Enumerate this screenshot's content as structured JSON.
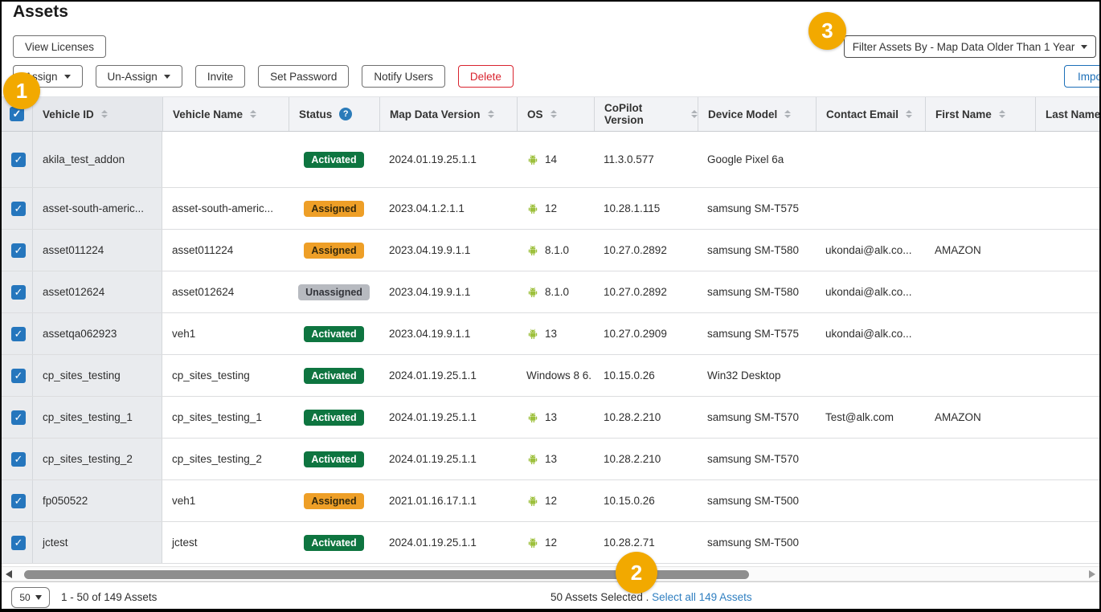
{
  "page": {
    "title": "Assets"
  },
  "toolbar": {
    "view_licenses": "View Licenses",
    "assign": "Assign",
    "unassign": "Un-Assign",
    "invite": "Invite",
    "set_password": "Set Password",
    "notify_users": "Notify Users",
    "delete": "Delete",
    "filter_label": "Filter Assets By - Map Data Older Than 1 Year",
    "import_label": "Import"
  },
  "callouts": {
    "one": "1",
    "two": "2",
    "three": "3"
  },
  "table": {
    "columns": [
      {
        "label": "Vehicle ID",
        "sort": true
      },
      {
        "label": "Vehicle Name",
        "sort": true
      },
      {
        "label": "Status",
        "help": true
      },
      {
        "label": "Map Data Version",
        "sort": true
      },
      {
        "label": "OS",
        "sort": true
      },
      {
        "label": "CoPilot Version",
        "sort": true
      },
      {
        "label": "Device Model",
        "sort": true
      },
      {
        "label": "Contact Email",
        "sort": true
      },
      {
        "label": "First Name",
        "sort": true
      },
      {
        "label": "Last Name",
        "sort": false
      }
    ],
    "rows": [
      {
        "vehicle_id": "akila_test_addon",
        "vehicle_name": "",
        "status": "Activated",
        "map_data_version": "2024.01.19.25.1.1",
        "os": "14",
        "os_android": true,
        "copilot_version": "11.3.0.577",
        "device_model": "Google Pixel 6a",
        "contact_email": "",
        "first_name": "",
        "last_name": ""
      },
      {
        "vehicle_id": "asset-south-americ...",
        "vehicle_name": "asset-south-americ...",
        "status": "Assigned",
        "map_data_version": "2023.04.1.2.1.1",
        "os": "12",
        "os_android": true,
        "copilot_version": "10.28.1.115",
        "device_model": "samsung SM-T575",
        "contact_email": "",
        "first_name": "",
        "last_name": ""
      },
      {
        "vehicle_id": "asset011224",
        "vehicle_name": "asset011224",
        "status": "Assigned",
        "map_data_version": "2023.04.19.9.1.1",
        "os": "8.1.0",
        "os_android": true,
        "copilot_version": "10.27.0.2892",
        "device_model": "samsung SM-T580",
        "contact_email": "ukondai@alk.co...",
        "first_name": "AMAZON",
        "last_name": ""
      },
      {
        "vehicle_id": "asset012624",
        "vehicle_name": "asset012624",
        "status": "Unassigned",
        "map_data_version": "2023.04.19.9.1.1",
        "os": "8.1.0",
        "os_android": true,
        "copilot_version": "10.27.0.2892",
        "device_model": "samsung SM-T580",
        "contact_email": "ukondai@alk.co...",
        "first_name": "",
        "last_name": ""
      },
      {
        "vehicle_id": "assetqa062923",
        "vehicle_name": "veh1",
        "status": "Activated",
        "map_data_version": "2023.04.19.9.1.1",
        "os": "13",
        "os_android": true,
        "copilot_version": "10.27.0.2909",
        "device_model": "samsung SM-T575",
        "contact_email": "ukondai@alk.co...",
        "first_name": "",
        "last_name": ""
      },
      {
        "vehicle_id": "cp_sites_testing",
        "vehicle_name": "cp_sites_testing",
        "status": "Activated",
        "map_data_version": "2024.01.19.25.1.1",
        "os": "Windows 8 6.",
        "os_android": false,
        "copilot_version": "10.15.0.26",
        "device_model": "Win32 Desktop",
        "contact_email": "",
        "first_name": "",
        "last_name": ""
      },
      {
        "vehicle_id": "cp_sites_testing_1",
        "vehicle_name": "cp_sites_testing_1",
        "status": "Activated",
        "map_data_version": "2024.01.19.25.1.1",
        "os": "13",
        "os_android": true,
        "copilot_version": "10.28.2.210",
        "device_model": "samsung SM-T570",
        "contact_email": "Test@alk.com",
        "first_name": "AMAZON",
        "last_name": ""
      },
      {
        "vehicle_id": "cp_sites_testing_2",
        "vehicle_name": "cp_sites_testing_2",
        "status": "Activated",
        "map_data_version": "2024.01.19.25.1.1",
        "os": "13",
        "os_android": true,
        "copilot_version": "10.28.2.210",
        "device_model": "samsung SM-T570",
        "contact_email": "",
        "first_name": "",
        "last_name": ""
      },
      {
        "vehicle_id": "fp050522",
        "vehicle_name": "veh1",
        "status": "Assigned",
        "map_data_version": "2021.01.16.17.1.1",
        "os": "12",
        "os_android": true,
        "copilot_version": "10.15.0.26",
        "device_model": "samsung SM-T500",
        "contact_email": "",
        "first_name": "",
        "last_name": ""
      },
      {
        "vehicle_id": "jctest",
        "vehicle_name": "jctest",
        "status": "Activated",
        "map_data_version": "2024.01.19.25.1.1",
        "os": "12",
        "os_android": true,
        "copilot_version": "10.28.2.71",
        "device_model": "samsung SM-T500",
        "contact_email": "",
        "first_name": "",
        "last_name": ""
      }
    ]
  },
  "footer": {
    "page_size": "50",
    "range_text": "1 - 50 of 149 Assets",
    "selected_text": "50 Assets Selected .",
    "select_all_link": "Select all 149 Assets"
  },
  "colors": {
    "status_activated": "#0e7540",
    "status_assigned": "#ee9f27",
    "status_unassigned": "#b7bac0",
    "android_green": "#9dc03c",
    "checkbox_blue": "#2576bd",
    "link_blue": "#2f7fc1",
    "delete_red": "#d9232e",
    "import_blue": "#1c6fb8",
    "callout_orange": "#f2a900",
    "help_blue": "#2b7bb9"
  }
}
